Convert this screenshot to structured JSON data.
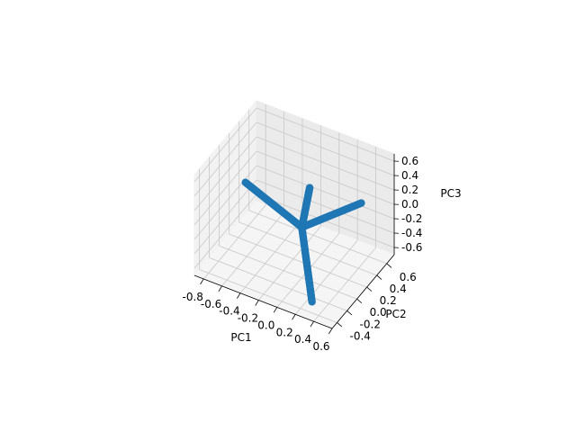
{
  "chart_data": {
    "type": "scatter",
    "projection": "3d",
    "xlabel": "PC1",
    "ylabel": "PC2",
    "zlabel": "PC3",
    "xlim": [
      -0.9,
      0.6
    ],
    "ylim": [
      -0.5,
      0.75
    ],
    "zlim": [
      -0.7,
      0.7
    ],
    "x_ticks": [
      "-0.8",
      "-0.6",
      "-0.4",
      "-0.2",
      "0.0",
      "0.2",
      "0.4",
      "0.6"
    ],
    "y_ticks": [
      "-0.4",
      "-0.2",
      "0.0",
      "0.2",
      "0.4",
      "0.6"
    ],
    "z_ticks": [
      "-0.6",
      "-0.4",
      "-0.2",
      "0.0",
      "0.2",
      "0.4",
      "0.6"
    ],
    "grid": true,
    "marker_color": "#1f77b4",
    "series": [
      {
        "points": [
          [
            0.0,
            0.0,
            0.0
          ],
          [
            0.55,
            0.18,
            0.46
          ]
        ]
      },
      {
        "points": [
          [
            0.0,
            0.0,
            0.0
          ],
          [
            -0.75,
            0.25,
            0.05
          ]
        ]
      },
      {
        "points": [
          [
            0.0,
            0.0,
            0.0
          ],
          [
            0.3,
            -0.35,
            -0.6
          ]
        ]
      },
      {
        "points": [
          [
            0.0,
            0.0,
            0.0
          ],
          [
            -0.05,
            0.25,
            0.32
          ]
        ]
      }
    ]
  }
}
